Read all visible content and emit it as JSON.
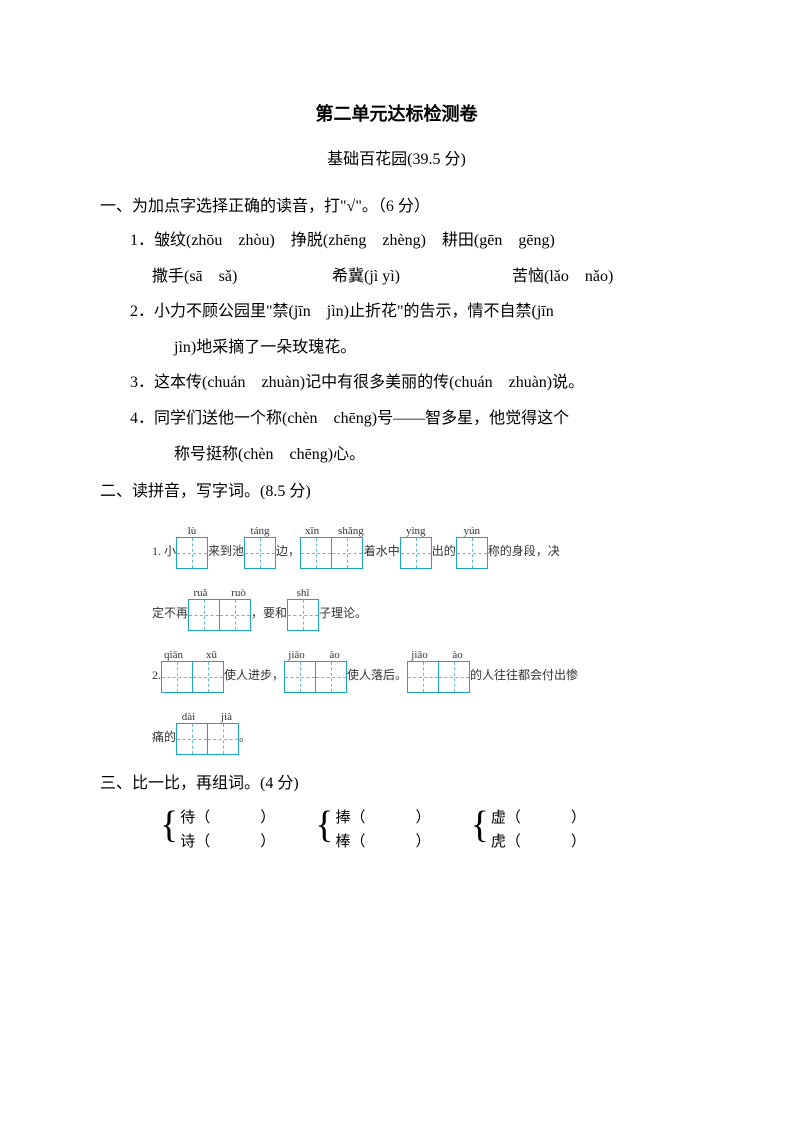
{
  "title": "第二单元达标检测卷",
  "subtitle": "基础百花园(39.5 分)",
  "s1": {
    "head": "一、为加点字选择正确的读音，打\"√\"。（6 分）",
    "i1a": "1．皱纹(zhōu　zhòu)　挣脱(zhēng　zhèng)　耕田(gēn　gēng)",
    "i1b": "撒手(sā　sǎ)",
    "i1c": "希冀(jì  yì)",
    "i1d": "苦恼(lǎo　nǎo)",
    "i2a": "2．小力不顾公园里\"禁(jīn　jìn)止折花\"的告示，情不自禁(jīn",
    "i2b": "jìn)地采摘了一朵玫瑰花。",
    "i3": "3．这本传(chuán　zhuàn)记中有很多美丽的传(chuán　zhuàn)说。",
    "i4a": "4．同学们送他一个称(chèn　chēng)号——智多星，他觉得这个",
    "i4b": "称号挺称(chèn　chēng)心。"
  },
  "s2": {
    "head": "二、读拼音，写字词。(8.5 分)",
    "r1": {
      "t1": "1. 小",
      "p1": [
        "lù"
      ],
      "t2": "来到池",
      "p2": [
        "táng"
      ],
      "t3": "边，",
      "p3": [
        "xīn",
        "shǎng"
      ],
      "t4": "着水中",
      "p4": [
        "yìng"
      ],
      "t5": "出的",
      "p5": [
        "yún"
      ],
      "t6": "称的身段，决"
    },
    "r2": {
      "t1": "定不再",
      "p1": [
        "ruǎ",
        "ruò"
      ],
      "t2": "，要和",
      "p2": [
        "shī"
      ],
      "t3": "子理论。"
    },
    "r3": {
      "t1": "2.",
      "p1": [
        "qiān",
        "xū"
      ],
      "t2": "使人进步，",
      "p2": [
        "jiāo",
        "ào"
      ],
      "t3": "使人落后。",
      "p3": [
        "jiāo",
        "ào"
      ],
      "t4": "的人往往都会付出惨"
    },
    "r4": {
      "t1": "痛的",
      "p1": [
        "dài",
        "jià"
      ],
      "t2": "。"
    }
  },
  "s3": {
    "head": "三、比一比，再组词。(4 分)",
    "g1a": "待（",
    "g1b": "诗（",
    "g2a": "捧（",
    "g2b": "棒（",
    "g3a": "虚（",
    "g3b": "虎（",
    "close": "）"
  }
}
